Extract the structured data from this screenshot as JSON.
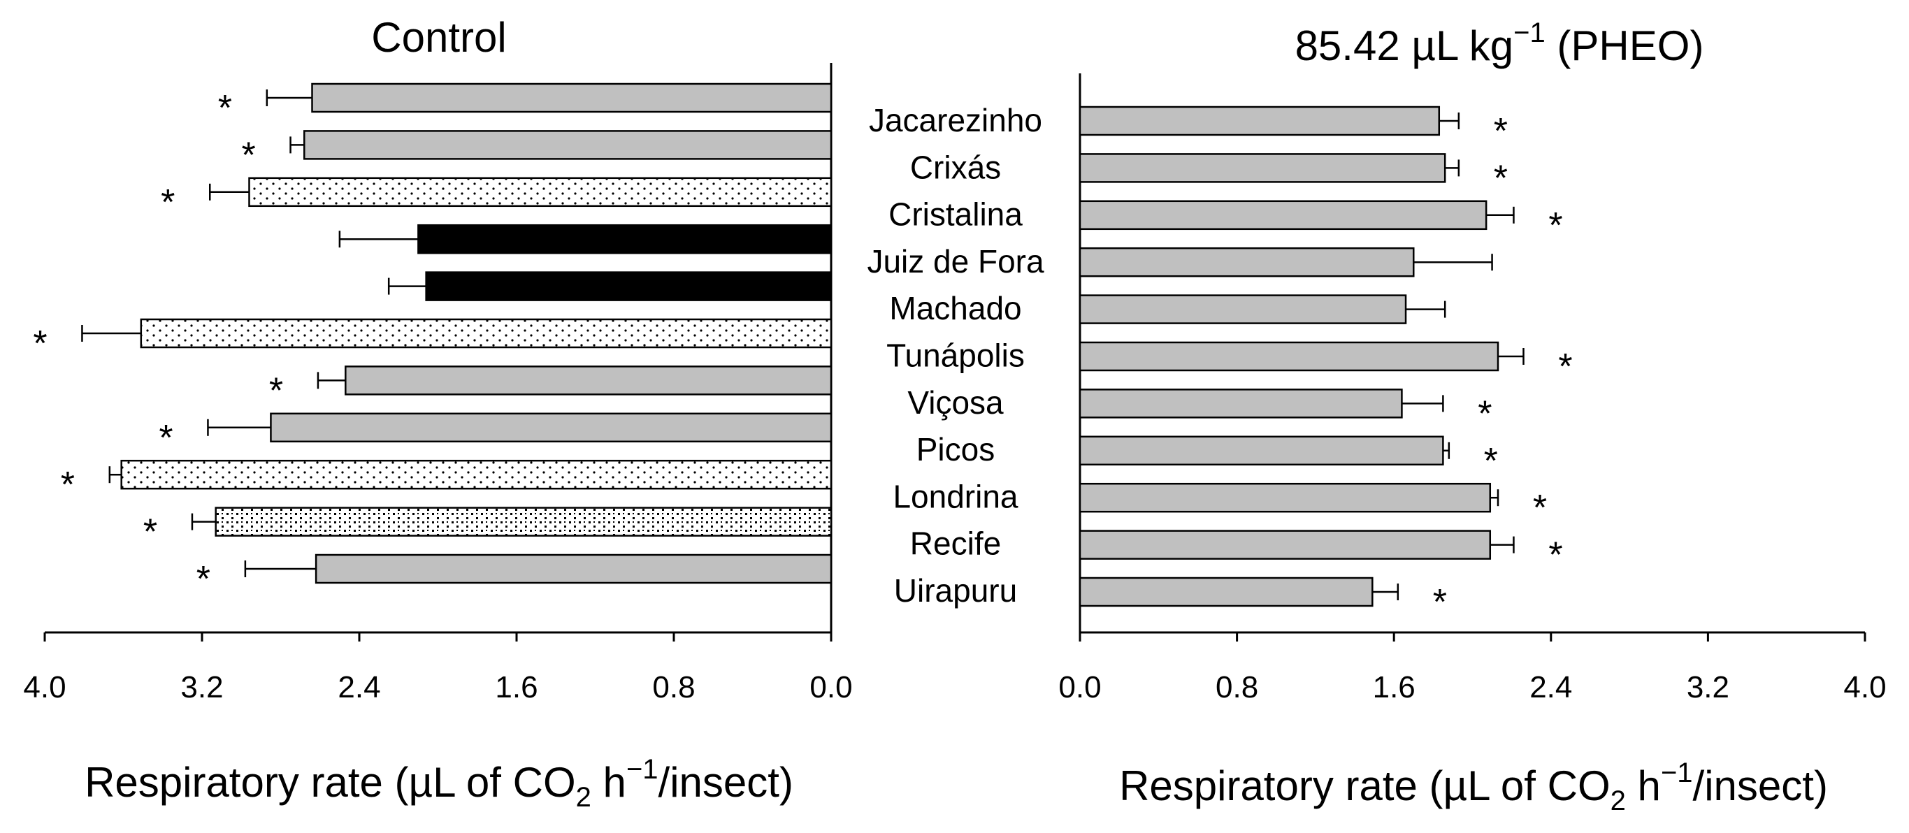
{
  "chart_data": [
    {
      "type": "bar",
      "orientation": "horizontal",
      "direction": "reversed",
      "title": "Control",
      "xlabel": {
        "prefix": "Respiratory rate (µL of CO",
        "sub": "2",
        "mid": " h",
        "sup": "−1",
        "suffix": "/insect)"
      },
      "xlim": [
        0,
        4.0
      ],
      "xticks": [
        "0.0",
        "0.8",
        "1.6",
        "2.4",
        "3.2",
        "4.0"
      ],
      "categories": [
        "Jacarezinho",
        "Crixás",
        "Cristalina",
        "Juiz de Fora",
        "Machado",
        "Tunápolis",
        "Viçosa",
        "Picos",
        "Londrina",
        "Recife",
        "Uirapuru"
      ],
      "values": [
        2.64,
        2.68,
        2.96,
        2.1,
        2.06,
        3.51,
        2.47,
        2.85,
        3.61,
        3.13,
        2.62
      ],
      "errors": [
        0.23,
        0.07,
        0.2,
        0.4,
        0.19,
        0.3,
        0.14,
        0.32,
        0.06,
        0.12,
        0.36
      ],
      "fill": [
        "gray",
        "gray",
        "dotted",
        "black",
        "black",
        "dotted",
        "gray",
        "gray",
        "dotted",
        "dense-dotted",
        "gray"
      ],
      "significance": [
        "*",
        "*",
        "*",
        "",
        "",
        "*",
        "*",
        "*",
        "*",
        "*",
        "*"
      ]
    },
    {
      "type": "bar",
      "orientation": "horizontal",
      "direction": "normal",
      "title": {
        "prefix": "85.42 µL kg",
        "sup": "−1",
        "suffix": " (PHEO)"
      },
      "xlabel": {
        "prefix": "Respiratory rate (µL of CO",
        "sub": "2",
        "mid": " h",
        "sup": "−1",
        "suffix": "/insect)"
      },
      "xlim": [
        0,
        4.0
      ],
      "xticks": [
        "0.0",
        "0.8",
        "1.6",
        "2.4",
        "3.2",
        "4.0"
      ],
      "categories": [
        "Jacarezinho",
        "Crixás",
        "Cristalina",
        "Juiz de Fora",
        "Machado",
        "Tunápolis",
        "Viçosa",
        "Picos",
        "Londrina",
        "Recife",
        "Uirapuru"
      ],
      "values": [
        1.83,
        1.86,
        2.07,
        1.7,
        1.66,
        2.13,
        1.64,
        1.85,
        2.09,
        2.09,
        1.49
      ],
      "errors": [
        0.1,
        0.07,
        0.14,
        0.4,
        0.2,
        0.13,
        0.21,
        0.03,
        0.04,
        0.12,
        0.13
      ],
      "fill": [
        "gray",
        "gray",
        "gray",
        "gray",
        "gray",
        "gray",
        "gray",
        "gray",
        "gray",
        "gray",
        "gray"
      ],
      "significance": [
        "*",
        "*",
        "*",
        "",
        "",
        "*",
        "*",
        "*",
        "*",
        "*",
        "*"
      ]
    }
  ],
  "colors": {
    "gray": "#c0c0c0",
    "black": "#000000",
    "axis": "#000000",
    "background": "#ffffff"
  }
}
